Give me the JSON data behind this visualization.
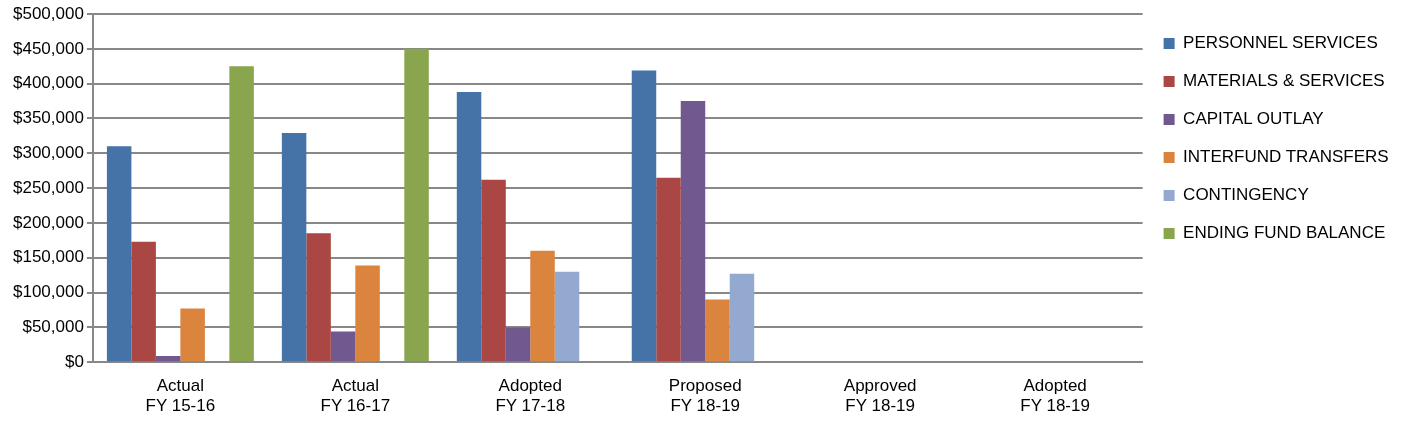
{
  "chart_data": {
    "type": "bar",
    "categories": [
      "Actual\nFY 15-16",
      "Actual\nFY 16-17",
      "Adopted\nFY 17-18",
      "Proposed\nFY 18-19",
      "Approved\nFY 18-19",
      "Adopted\nFY 18-19"
    ],
    "series": [
      {
        "name": "PERSONNEL SERVICES",
        "color": "#4572a7",
        "values": [
          310000,
          329000,
          388000,
          419000,
          null,
          null
        ]
      },
      {
        "name": "MATERIALS & SERVICES",
        "color": "#aa4643",
        "values": [
          173000,
          185000,
          262000,
          265000,
          null,
          null
        ]
      },
      {
        "name": "CAPITAL OUTLAY",
        "color": "#71588f",
        "values": [
          9000,
          44000,
          50000,
          375000,
          null,
          null
        ]
      },
      {
        "name": "INTERFUND TRANSFERS",
        "color": "#db843d",
        "values": [
          77000,
          139000,
          160000,
          90000,
          null,
          null
        ]
      },
      {
        "name": "CONTINGENCY",
        "color": "#93a9cf",
        "values": [
          null,
          null,
          130000,
          127000,
          null,
          null
        ]
      },
      {
        "name": "ENDING FUND BALANCE",
        "color": "#89a54e",
        "values": [
          425000,
          450000,
          null,
          null,
          null,
          null
        ]
      }
    ],
    "ylim": [
      0,
      500000
    ],
    "yticks": [
      {
        "value": 0,
        "label": "$0"
      },
      {
        "value": 50000,
        "label": "$50,000"
      },
      {
        "value": 100000,
        "label": "$100,000"
      },
      {
        "value": 150000,
        "label": "$150,000"
      },
      {
        "value": 200000,
        "label": "$200,000"
      },
      {
        "value": 250000,
        "label": "$250,000"
      },
      {
        "value": 300000,
        "label": "$300,000"
      },
      {
        "value": 350000,
        "label": "$350,000"
      },
      {
        "value": 400000,
        "label": "$400,000"
      },
      {
        "value": 450000,
        "label": "$450,000"
      },
      {
        "value": 500000,
        "label": "$500,000"
      }
    ],
    "grid": "y",
    "legend": "right"
  }
}
